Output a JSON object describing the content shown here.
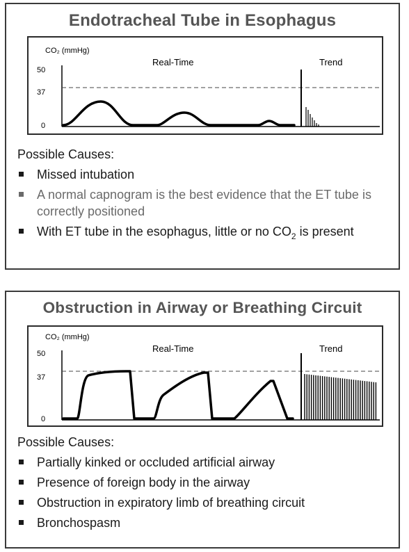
{
  "panels": [
    {
      "title": "Endotracheal Tube in Esophagus",
      "chart": {
        "y_label": "CO₂ (mmHg)",
        "realtime_label": "Real-Time",
        "trend_label": "Trend",
        "y_ticks": [
          "50",
          "37",
          "0"
        ]
      },
      "causes_title": "Possible Causes:",
      "causes": [
        {
          "text": "Missed intubation"
        },
        {
          "text": "A normal capnogram is the best evidence that the ET tube is correctly positioned"
        },
        {
          "pre": "With ET tube in the esophagus, little or no CO",
          "sub": "2",
          "post": " is present"
        }
      ]
    },
    {
      "title": "Obstruction in Airway or Breathing Circuit",
      "chart": {
        "y_label": "CO₂ (mmHg)",
        "realtime_label": "Real-Time",
        "trend_label": "Trend",
        "y_ticks": [
          "50",
          "37",
          "0"
        ]
      },
      "causes_title": "Possible Causes:",
      "causes": [
        {
          "text": "Partially kinked or occluded artificial airway"
        },
        {
          "text": "Presence of foreign body in the airway"
        },
        {
          "text": "Obstruction in expiratory limb of breathing circuit"
        },
        {
          "text": "Bronchospasm"
        }
      ]
    }
  ],
  "colors": {
    "border": "#3a3a3a",
    "title": "#555555",
    "muted_text": "#6a6a6a",
    "waveform": "#000000"
  }
}
